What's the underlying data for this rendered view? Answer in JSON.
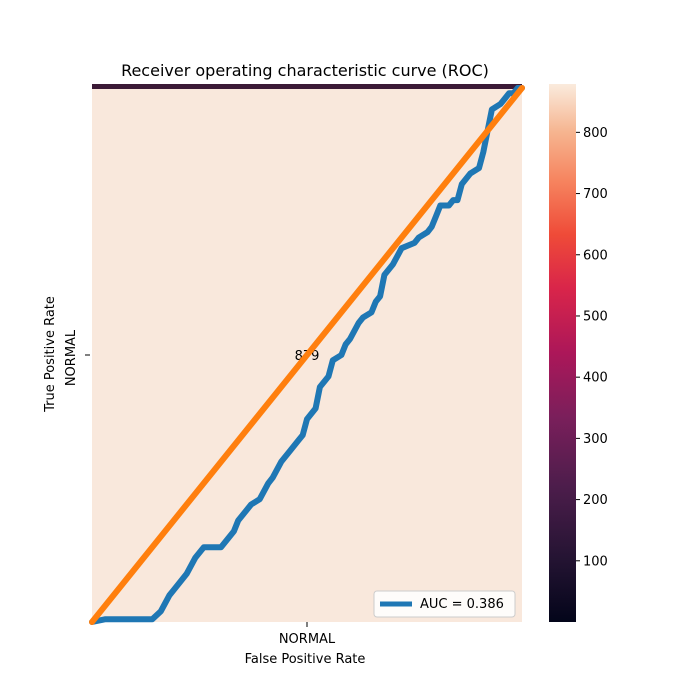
{
  "chart_data": {
    "type": "line",
    "title": "Receiver operating characteristic curve (ROC)",
    "xlabel": "False Positive Rate",
    "ylabel": "True Positive Rate",
    "xlim": [
      0,
      1
    ],
    "ylim": [
      0,
      1
    ],
    "grid": false,
    "legend_position": "lower right",
    "heatmap": {
      "row_labels": [
        "NORMAL"
      ],
      "col_labels": [
        "NORMAL"
      ],
      "cells": [
        [
          879
        ]
      ],
      "cell_text": "879"
    },
    "colorbar": {
      "ticks": [
        100,
        200,
        300,
        400,
        500,
        600,
        700,
        800
      ],
      "tick_labels": [
        "100",
        "200",
        "300",
        "400",
        "500",
        "600",
        "700",
        "800"
      ],
      "vmin": 0,
      "vmax": 879
    },
    "series": [
      {
        "name": "AUC = 0.386",
        "color": "#1f77b4",
        "x": [
          0,
          0.03,
          0.14,
          0.16,
          0.18,
          0.19,
          0.21,
          0.22,
          0.24,
          0.26,
          0.27,
          0.28,
          0.3,
          0.33,
          0.33,
          0.34,
          0.36,
          0.37,
          0.39,
          0.41,
          0.42,
          0.44,
          0.46,
          0.48,
          0.49,
          0.5,
          0.52,
          0.53,
          0.55,
          0.56,
          0.58,
          0.59,
          0.6,
          0.62,
          0.63,
          0.65,
          0.66,
          0.67,
          0.68,
          0.7,
          0.72,
          0.75,
          0.76,
          0.78,
          0.79,
          0.8,
          0.81,
          0.83,
          0.84,
          0.85,
          0.86,
          0.88,
          0.9,
          0.91,
          0.92,
          0.93,
          0.95,
          0.96,
          0.97,
          0.98,
          0.99,
          1.0
        ],
        "y": [
          0,
          0.005,
          0.005,
          0.02,
          0.05,
          0.06,
          0.08,
          0.09,
          0.12,
          0.14,
          0.14,
          0.14,
          0.14,
          0.17,
          0.17,
          0.19,
          0.21,
          0.22,
          0.23,
          0.26,
          0.27,
          0.3,
          0.32,
          0.34,
          0.35,
          0.38,
          0.4,
          0.44,
          0.46,
          0.49,
          0.5,
          0.52,
          0.53,
          0.56,
          0.57,
          0.58,
          0.6,
          0.61,
          0.65,
          0.67,
          0.7,
          0.71,
          0.72,
          0.73,
          0.74,
          0.76,
          0.78,
          0.78,
          0.79,
          0.79,
          0.82,
          0.84,
          0.85,
          0.88,
          0.92,
          0.96,
          0.97,
          0.98,
          0.99,
          0.99,
          1.0,
          1.0
        ]
      },
      {
        "name": "",
        "color": "#ff7f0e",
        "x": [
          0,
          1
        ],
        "y": [
          0,
          1
        ]
      }
    ]
  },
  "colors": {
    "cell_fill": "#f9e8dc",
    "top_band": "#3b1a36"
  }
}
